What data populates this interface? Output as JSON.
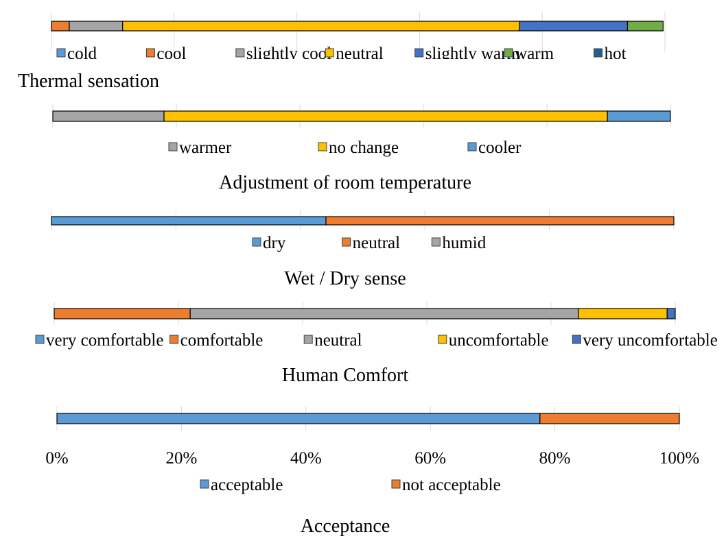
{
  "colors": {
    "light_blue": "#5B9BD5",
    "orange": "#ED7D31",
    "gray": "#A5A5A5",
    "yellow": "#FFC000",
    "mid_blue": "#4472C4",
    "green": "#70AD47",
    "dark_blue": "#255E91",
    "grid": "#D9D9D9",
    "bar_outline": "#000000"
  },
  "chart_data": [
    {
      "type": "bar",
      "orientation": "horizontal-stacked-100",
      "title": "Thermal sensation",
      "xlim": [
        0,
        100
      ],
      "grid": true,
      "legend_position": "bottom",
      "series": [
        {
          "name": "cold",
          "value": 0,
          "color": "#5B9BD5"
        },
        {
          "name": "cool",
          "value": 2.9,
          "color": "#ED7D31"
        },
        {
          "name": "slightly cool",
          "value": 8.7,
          "color": "#A5A5A5"
        },
        {
          "name": "neutral",
          "value": 64.7,
          "color": "#FFC000"
        },
        {
          "name": "slightly warm",
          "value": 17.6,
          "color": "#4472C4"
        },
        {
          "name": "warm",
          "value": 5.8,
          "color": "#70AD47"
        },
        {
          "name": "hot",
          "value": 0,
          "color": "#255E91"
        }
      ]
    },
    {
      "type": "bar",
      "orientation": "horizontal-stacked-100",
      "title": "Adjustment of room temperature",
      "xlim": [
        0,
        100
      ],
      "grid": true,
      "legend_position": "bottom",
      "series": [
        {
          "name": "warmer",
          "value": 18,
          "color": "#A5A5A5"
        },
        {
          "name": "no change",
          "value": 71.8,
          "color": "#FFC000"
        },
        {
          "name": "cooler",
          "value": 10.2,
          "color": "#5B9BD5"
        }
      ]
    },
    {
      "type": "bar",
      "orientation": "horizontal-stacked-100",
      "title": "Wet / Dry sense",
      "xlim": [
        0,
        100
      ],
      "grid": true,
      "legend_position": "bottom",
      "series": [
        {
          "name": "dry",
          "value": 44.1,
          "color": "#5B9BD5"
        },
        {
          "name": "neutral",
          "value": 55.9,
          "color": "#ED7D31"
        },
        {
          "name": "humid",
          "value": 0,
          "color": "#A5A5A5"
        }
      ]
    },
    {
      "type": "bar",
      "orientation": "horizontal-stacked-100",
      "title": "Human Comfort",
      "xlim": [
        0,
        100
      ],
      "grid": true,
      "legend_position": "bottom",
      "series": [
        {
          "name": "very comfortable",
          "value": 0,
          "color": "#5B9BD5"
        },
        {
          "name": "comfortable",
          "value": 21.9,
          "color": "#ED7D31"
        },
        {
          "name": "neutral",
          "value": 62.5,
          "color": "#A5A5A5"
        },
        {
          "name": "uncomfortable",
          "value": 14.3,
          "color": "#FFC000"
        },
        {
          "name": "very uncomfortable",
          "value": 1.3,
          "color": "#4472C4"
        }
      ]
    },
    {
      "type": "bar",
      "orientation": "horizontal-stacked-100",
      "title": "Acceptance",
      "xlim": [
        0,
        100
      ],
      "grid": true,
      "legend_position": "bottom",
      "x_tick_labels": [
        "0%",
        "20%",
        "40%",
        "60%",
        "80%",
        "100%"
      ],
      "series": [
        {
          "name": "acceptable",
          "value": 77.6,
          "color": "#5B9BD5"
        },
        {
          "name": "not acceptable",
          "value": 22.4,
          "color": "#ED7D31"
        }
      ]
    }
  ]
}
